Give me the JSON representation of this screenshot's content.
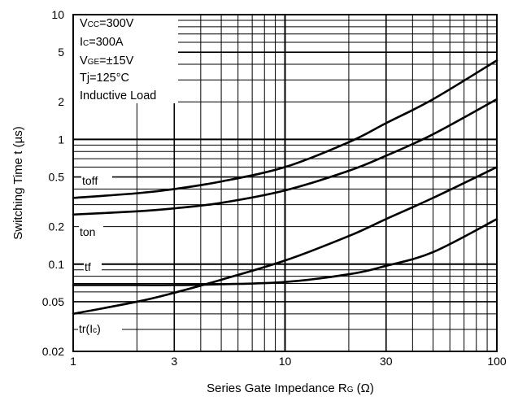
{
  "chart_data": {
    "type": "line",
    "x_scale": "log",
    "y_scale": "log",
    "xlim": [
      1,
      100
    ],
    "ylim": [
      0.02,
      10
    ],
    "grid": true,
    "xlabel": {
      "main": "Series Gate Impedance R",
      "sub": "G",
      "unit": "(Ω)"
    },
    "ylabel": "Switching Time t  (µs)",
    "x_ticks": [
      1,
      3,
      10,
      30,
      100
    ],
    "x_tick_labels": [
      "1",
      "3",
      "10",
      "30",
      "100"
    ],
    "y_ticks": [
      0.02,
      0.05,
      0.1,
      0.2,
      0.5,
      1,
      2,
      5,
      10
    ],
    "y_tick_labels": [
      "0.02",
      "0.05",
      "0.1",
      "0.2",
      "0.5",
      "1",
      "2",
      "5",
      "10"
    ],
    "conditions": [
      {
        "main": "V",
        "sub": "CC",
        "rest": "=300V"
      },
      {
        "main": "I",
        "sub": "C",
        "rest": "=300A"
      },
      {
        "main": "V",
        "sub": "GE",
        "rest": "=±15V"
      },
      {
        "main": "Tj=125°C",
        "sub": "",
        "rest": ""
      },
      {
        "main": "Inductive Load",
        "sub": "",
        "rest": ""
      }
    ],
    "series": [
      {
        "name": "toff",
        "label": {
          "main": "toff",
          "sub": "",
          "rest": ""
        },
        "x": [
          1,
          2,
          3,
          5,
          10,
          20,
          30,
          50,
          100
        ],
        "y": [
          0.34,
          0.37,
          0.4,
          0.46,
          0.6,
          0.95,
          1.35,
          2.1,
          4.3
        ]
      },
      {
        "name": "ton",
        "label": {
          "main": "ton",
          "sub": "",
          "rest": ""
        },
        "x": [
          1,
          2,
          3,
          5,
          10,
          20,
          30,
          50,
          100
        ],
        "y": [
          0.25,
          0.265,
          0.28,
          0.31,
          0.39,
          0.56,
          0.74,
          1.1,
          2.1
        ]
      },
      {
        "name": "tf",
        "label": {
          "main": "tf",
          "sub": "",
          "rest": ""
        },
        "x": [
          1,
          2,
          3,
          5,
          10,
          20,
          30,
          50,
          100
        ],
        "y": [
          0.068,
          0.068,
          0.068,
          0.069,
          0.072,
          0.083,
          0.097,
          0.125,
          0.23
        ]
      },
      {
        "name": "tr(Ic)",
        "label": {
          "main": "tr(I",
          "sub": "c",
          "rest": ")"
        },
        "x": [
          1,
          2,
          3,
          5,
          10,
          20,
          30,
          50,
          100
        ],
        "y": [
          0.04,
          0.05,
          0.059,
          0.075,
          0.107,
          0.168,
          0.23,
          0.34,
          0.6
        ]
      }
    ]
  }
}
